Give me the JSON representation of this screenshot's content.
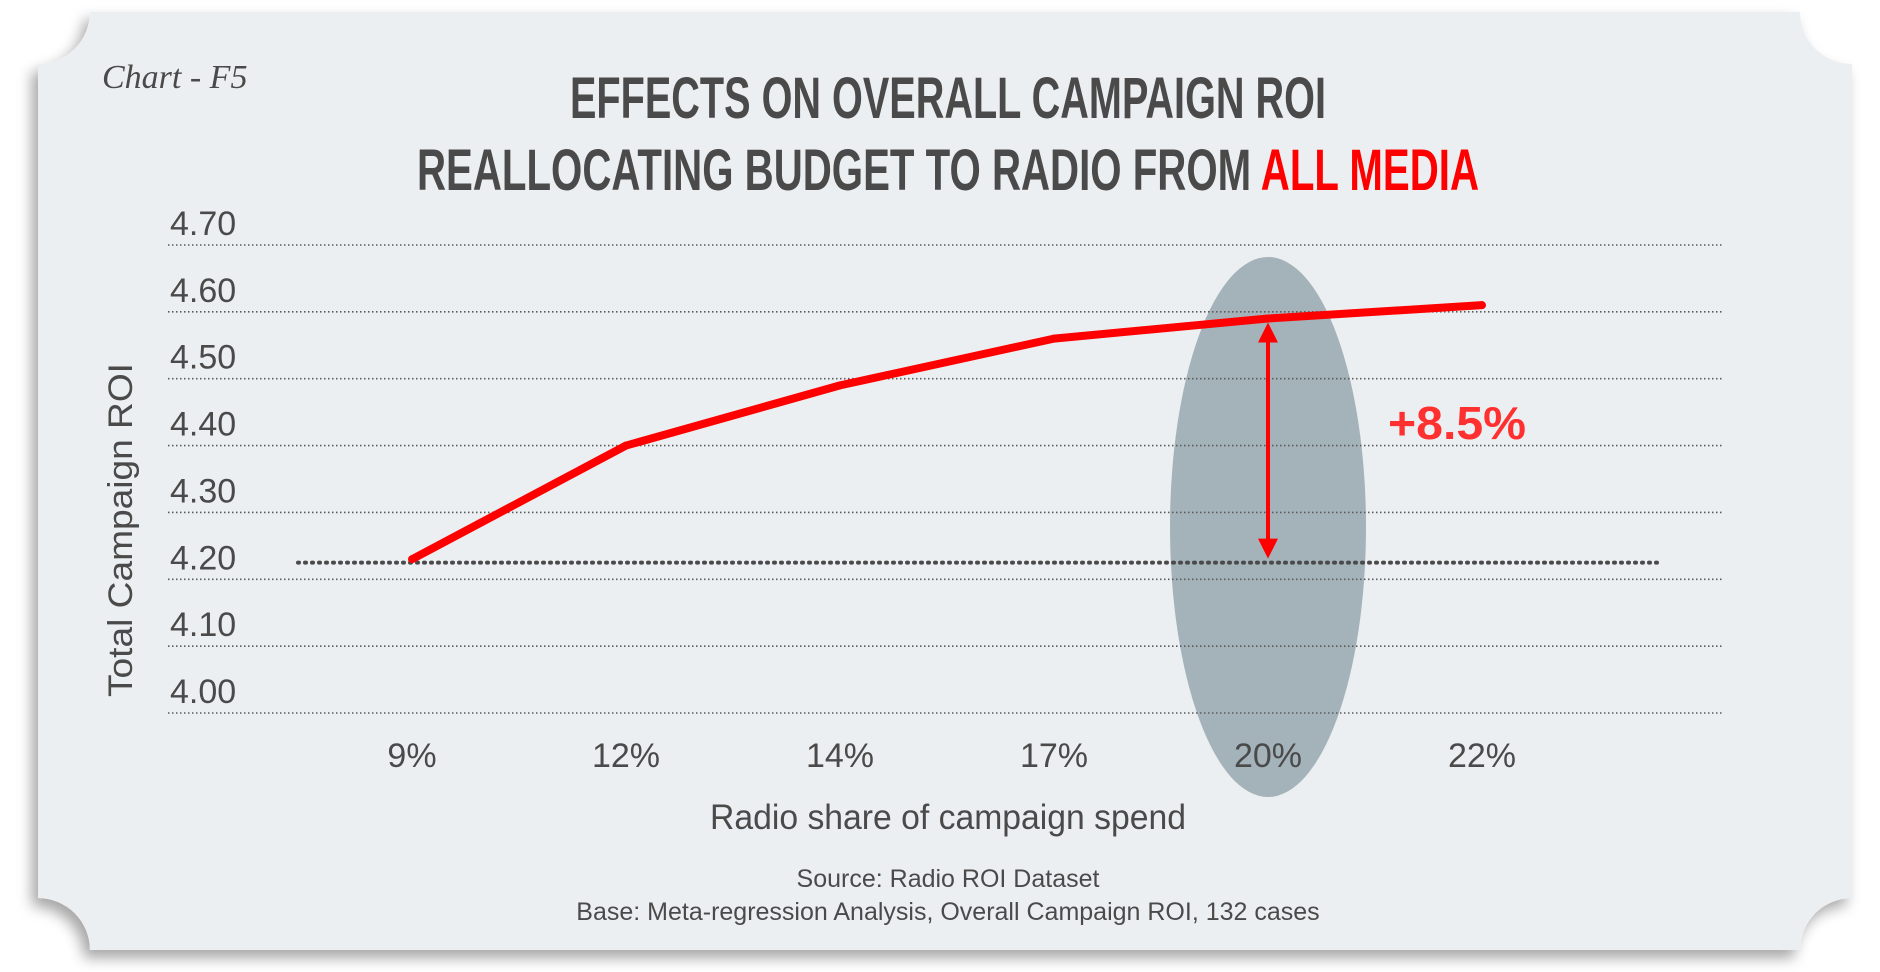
{
  "chart_label": "Chart - F5",
  "title_line1": "EFFECTS ON OVERALL CAMPAIGN ROI",
  "title_line2_prefix": "REALLOCATING BUDGET TO RADIO FROM ",
  "title_line2_highlight": "ALL MEDIA",
  "annotation": "+8.5%",
  "source": "Source: Radio ROI Dataset",
  "base": "Base: Meta-regression Analysis, Overall Campaign ROI, 132 cases",
  "colors": {
    "card": "#eceff1",
    "line": "#ff0000",
    "highlight": "#a4b3ba",
    "text": "#4a4a4a",
    "grid": "#5a5a5a"
  },
  "chart_data": {
    "type": "line",
    "title": "EFFECTS ON OVERALL CAMPAIGN ROI REALLOCATING BUDGET TO RADIO FROM ALL MEDIA",
    "xlabel": "Radio share of campaign spend",
    "ylabel": "Total Campaign ROI",
    "categories": [
      "9%",
      "12%",
      "14%",
      "17%",
      "20%",
      "22%"
    ],
    "series": [
      {
        "values": [
          4.23,
          4.4,
          4.49,
          4.56,
          4.59,
          4.61
        ]
      }
    ],
    "ylim": [
      4.0,
      4.7
    ],
    "yticks": [
      "4.00",
      "4.10",
      "4.20",
      "4.30",
      "4.40",
      "4.50",
      "4.60",
      "4.70"
    ],
    "baseline_value": 4.225,
    "highlighted_category": "20%",
    "grid": true
  }
}
